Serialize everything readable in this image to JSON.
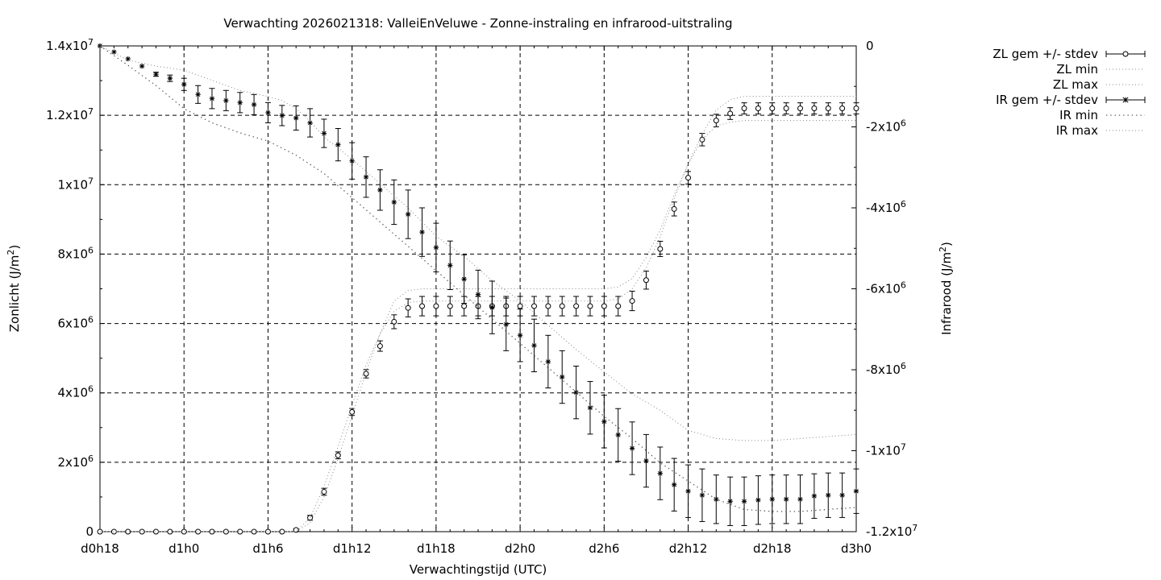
{
  "chart_data": {
    "type": "line",
    "title": "Verwachting 2026021318: ValleiEnVeluwe - Zonne-instraling en infrarood-uitstraling",
    "xlabel": "Verwachtingstijd (UTC)",
    "ylabel": "Zonlicht (J/m2)",
    "ylabel_main": "Zonlicht (J/m",
    "ylabel_sup": "2",
    "ylabel_close": ")",
    "y2label": "Infrarood (J/m2)",
    "y2label_main": "Infrarood (J/m",
    "y2label_sup": "2",
    "y2label_close": ")",
    "x_unit": "hours since d0h18",
    "xlim": [
      0,
      54
    ],
    "ylim": [
      0,
      14000000
    ],
    "y2lim": [
      -12000000,
      0
    ],
    "grid": true,
    "legend_position": "outside-right",
    "x_ticks": [
      {
        "hour": 0,
        "label": "d0h18"
      },
      {
        "hour": 6,
        "label": "d1h0"
      },
      {
        "hour": 12,
        "label": "d1h6"
      },
      {
        "hour": 18,
        "label": "d1h12"
      },
      {
        "hour": 24,
        "label": "d1h18"
      },
      {
        "hour": 30,
        "label": "d2h0"
      },
      {
        "hour": 36,
        "label": "d2h6"
      },
      {
        "hour": 42,
        "label": "d2h12"
      },
      {
        "hour": 48,
        "label": "d2h18"
      },
      {
        "hour": 54,
        "label": "d3h0"
      }
    ],
    "y_ticks": [
      {
        "value": 0,
        "base": "0",
        "exp": ""
      },
      {
        "value": 2000000,
        "base": "2x10",
        "exp": "6"
      },
      {
        "value": 4000000,
        "base": "4x10",
        "exp": "6"
      },
      {
        "value": 6000000,
        "base": "6x10",
        "exp": "6"
      },
      {
        "value": 8000000,
        "base": "8x10",
        "exp": "6"
      },
      {
        "value": 10000000,
        "base": "1x10",
        "exp": "7"
      },
      {
        "value": 12000000,
        "base": "1.2x10",
        "exp": "7"
      },
      {
        "value": 14000000,
        "base": "1.4x10",
        "exp": "7"
      }
    ],
    "y2_ticks": [
      {
        "value": 0,
        "base": "0",
        "exp": ""
      },
      {
        "value": -2000000,
        "base": "-2x10",
        "exp": "6"
      },
      {
        "value": -4000000,
        "base": "-4x10",
        "exp": "6"
      },
      {
        "value": -6000000,
        "base": "-6x10",
        "exp": "6"
      },
      {
        "value": -8000000,
        "base": "-8x10",
        "exp": "6"
      },
      {
        "value": -10000000,
        "base": "-1x10",
        "exp": "7"
      },
      {
        "value": -12000000,
        "base": "-1.2x10",
        "exp": "7"
      }
    ],
    "legend": [
      {
        "label": "ZL gem +/- stdev",
        "style": "errorbar-circle"
      },
      {
        "label": "ZL min",
        "style": "dotted"
      },
      {
        "label": "ZL max",
        "style": "dotted"
      },
      {
        "label": "IR gem +/- stdev",
        "style": "errorbar-star"
      },
      {
        "label": "IR min",
        "style": "dotted-coarse"
      },
      {
        "label": "IR max",
        "style": "dotted"
      }
    ],
    "series": [
      {
        "name": "ZL gem +/- stdev",
        "axis": "y",
        "marker": "circle",
        "x": [
          0,
          1,
          2,
          3,
          4,
          5,
          6,
          7,
          8,
          9,
          10,
          11,
          12,
          13,
          14,
          15,
          16,
          17,
          18,
          19,
          20,
          21,
          22,
          23,
          24,
          25,
          26,
          27,
          28,
          29,
          30,
          31,
          32,
          33,
          34,
          35,
          36,
          37,
          38,
          39,
          40,
          41,
          42,
          43,
          44,
          45,
          46,
          47,
          48,
          49,
          50,
          51,
          52,
          53,
          54
        ],
        "values": [
          0,
          0,
          0,
          0,
          0,
          0,
          0,
          0,
          0,
          0,
          0,
          0,
          0,
          0,
          50000,
          400000,
          1150000,
          2200000,
          3450000,
          4550000,
          5350000,
          6050000,
          6450000,
          6500000,
          6500000,
          6500000,
          6500000,
          6500000,
          6500000,
          6500000,
          6500000,
          6500000,
          6500000,
          6500000,
          6500000,
          6500000,
          6500000,
          6500000,
          6650000,
          7250000,
          8150000,
          9300000,
          10200000,
          11300000,
          11850000,
          12050000,
          12200000,
          12200000,
          12200000,
          12200000,
          12200000,
          12200000,
          12200000,
          12200000,
          12200000
        ],
        "stdev": [
          0,
          0,
          0,
          0,
          0,
          0,
          0,
          0,
          0,
          0,
          0,
          0,
          0,
          0,
          30000,
          70000,
          100000,
          100000,
          100000,
          120000,
          150000,
          200000,
          260000,
          280000,
          280000,
          280000,
          280000,
          280000,
          280000,
          280000,
          280000,
          280000,
          280000,
          280000,
          280000,
          280000,
          280000,
          280000,
          280000,
          260000,
          220000,
          200000,
          180000,
          180000,
          180000,
          170000,
          160000,
          160000,
          160000,
          160000,
          160000,
          160000,
          160000,
          160000,
          160000
        ]
      },
      {
        "name": "ZL min",
        "axis": "y",
        "x": [
          0,
          2,
          4,
          6,
          8,
          10,
          12,
          13,
          14,
          15,
          16,
          17,
          18,
          19,
          20,
          21,
          22,
          23,
          24,
          26,
          28,
          30,
          32,
          34,
          36,
          37,
          38,
          39,
          40,
          41,
          42,
          43,
          44,
          45,
          46,
          48,
          50,
          52,
          54
        ],
        "values": [
          0,
          0,
          0,
          0,
          0,
          0,
          0,
          0,
          0,
          250000,
          1000000,
          2100000,
          3350000,
          4600000,
          5700000,
          6650000,
          6950000,
          7000000,
          7000000,
          7000000,
          7000000,
          7000000,
          7000000,
          7000000,
          7000000,
          7050000,
          7300000,
          7900000,
          8700000,
          9700000,
          10600000,
          11300000,
          11700000,
          11800000,
          11850000,
          11850000,
          11850000,
          11850000,
          11850000
        ]
      },
      {
        "name": "ZL max",
        "axis": "y",
        "x": [
          0,
          2,
          4,
          6,
          8,
          10,
          12,
          13,
          14,
          15,
          16,
          17,
          18,
          19,
          20,
          21,
          22,
          23,
          24,
          26,
          28,
          30,
          32,
          34,
          36,
          37,
          38,
          39,
          40,
          41,
          42,
          43,
          44,
          45,
          46,
          48,
          50,
          52,
          54
        ],
        "values": [
          0,
          0,
          0,
          0,
          0,
          0,
          0,
          0,
          0,
          400000,
          1300000,
          2450000,
          3650000,
          4800000,
          5700000,
          6350000,
          6600000,
          6650000,
          6650000,
          6650000,
          6650000,
          6650000,
          6650000,
          6650000,
          6650000,
          6700000,
          7000000,
          7600000,
          8500000,
          9600000,
          10600000,
          11450000,
          12150000,
          12450000,
          12550000,
          12550000,
          12550000,
          12550000,
          12550000
        ]
      },
      {
        "name": "IR gem +/- stdev",
        "axis": "y2",
        "marker": "star",
        "x": [
          0,
          1,
          2,
          3,
          4,
          5,
          6,
          7,
          8,
          9,
          10,
          11,
          12,
          13,
          14,
          15,
          16,
          17,
          18,
          19,
          20,
          21,
          22,
          23,
          24,
          25,
          26,
          27,
          28,
          29,
          30,
          31,
          32,
          33,
          34,
          35,
          36,
          37,
          38,
          39,
          40,
          41,
          42,
          43,
          44,
          45,
          46,
          47,
          48,
          49,
          50,
          51,
          52,
          53,
          54
        ],
        "values": [
          0,
          -150000,
          -320000,
          -500000,
          -700000,
          -800000,
          -950000,
          -1200000,
          -1300000,
          -1350000,
          -1400000,
          -1450000,
          -1650000,
          -1720000,
          -1780000,
          -1900000,
          -2160000,
          -2440000,
          -2840000,
          -3240000,
          -3560000,
          -3860000,
          -4160000,
          -4600000,
          -4980000,
          -5420000,
          -5760000,
          -6140000,
          -6460000,
          -6880000,
          -7150000,
          -7400000,
          -7800000,
          -8180000,
          -8560000,
          -8940000,
          -9280000,
          -9610000,
          -9940000,
          -10250000,
          -10560000,
          -10840000,
          -11000000,
          -11100000,
          -11200000,
          -11250000,
          -11250000,
          -11220000,
          -11200000,
          -11200000,
          -11200000,
          -11120000,
          -11100000,
          -11100000,
          -11000000
        ],
        "stdev": [
          0,
          0,
          0,
          0,
          50000,
          80000,
          150000,
          220000,
          250000,
          250000,
          250000,
          250000,
          250000,
          250000,
          300000,
          350000,
          350000,
          400000,
          450000,
          500000,
          500000,
          550000,
          600000,
          600000,
          600000,
          600000,
          600000,
          600000,
          650000,
          650000,
          650000,
          650000,
          650000,
          650000,
          650000,
          650000,
          650000,
          650000,
          650000,
          650000,
          650000,
          650000,
          650000,
          650000,
          600000,
          600000,
          600000,
          600000,
          600000,
          600000,
          600000,
          550000,
          550000,
          550000,
          550000
        ]
      },
      {
        "name": "IR min",
        "axis": "y2",
        "x": [
          0,
          2,
          4,
          6,
          8,
          10,
          12,
          14,
          16,
          18,
          20,
          22,
          24,
          26,
          28,
          30,
          32,
          34,
          36,
          38,
          40,
          42,
          44,
          46,
          48,
          50,
          52,
          54
        ],
        "values": [
          0,
          -480000,
          -980000,
          -1550000,
          -1900000,
          -2150000,
          -2350000,
          -2700000,
          -3150000,
          -3750000,
          -4350000,
          -4950000,
          -5550000,
          -6150000,
          -6750000,
          -7350000,
          -7950000,
          -8550000,
          -9150000,
          -9700000,
          -10300000,
          -10750000,
          -11200000,
          -11450000,
          -11500000,
          -11500000,
          -11450000,
          -11400000
        ]
      },
      {
        "name": "IR max",
        "axis": "y2",
        "x": [
          0,
          2,
          4,
          6,
          8,
          10,
          12,
          13,
          14,
          15,
          16,
          18,
          20,
          22,
          24,
          26,
          28,
          30,
          32,
          34,
          36,
          38,
          40,
          42,
          44,
          46,
          48,
          50,
          52,
          54
        ],
        "values": [
          0,
          -350000,
          -500000,
          -600000,
          -850000,
          -1100000,
          -1250000,
          -1350000,
          -1550000,
          -1850000,
          -2250000,
          -2800000,
          -3400000,
          -4000000,
          -4700000,
          -5200000,
          -5800000,
          -6300000,
          -6900000,
          -7500000,
          -8050000,
          -8600000,
          -9000000,
          -9500000,
          -9700000,
          -9750000,
          -9750000,
          -9700000,
          -9650000,
          -9600000
        ]
      }
    ]
  }
}
